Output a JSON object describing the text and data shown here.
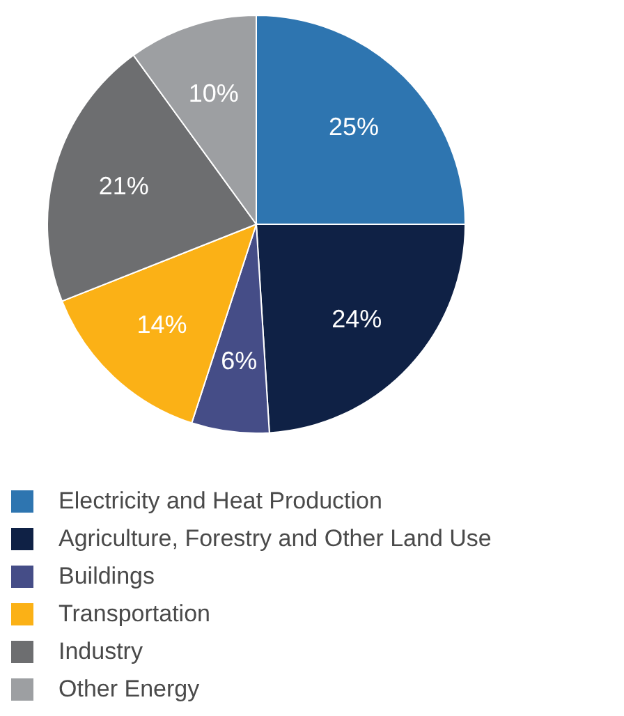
{
  "chart_data": {
    "type": "pie",
    "categories": [
      "Electricity and Heat Production",
      "Agriculture, Forestry and Other Land Use",
      "Buildings",
      "Transportation",
      "Industry",
      "Other Energy"
    ],
    "values": [
      25,
      24,
      6,
      14,
      21,
      10
    ],
    "value_labels": [
      "25%",
      "24%",
      "6%",
      "14%",
      "21%",
      "10%"
    ],
    "colors": [
      "#2e75b0",
      "#0f2145",
      "#454d87",
      "#fbb116",
      "#6d6e70",
      "#9d9fa2"
    ],
    "legend": "bottom"
  }
}
